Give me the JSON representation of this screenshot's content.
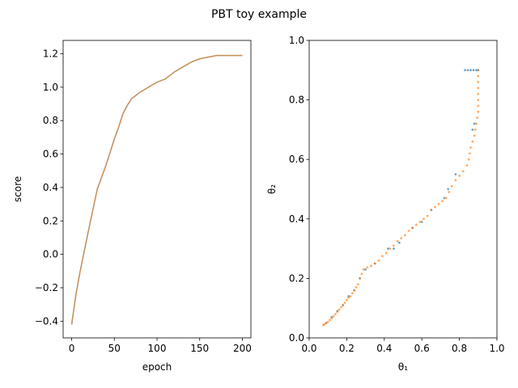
{
  "figure_title": "PBT toy example",
  "chart_data": [
    {
      "type": "line",
      "xlabel": "epoch",
      "ylabel": "score",
      "xlim": [
        -10,
        210
      ],
      "ylim": [
        -0.5,
        1.28
      ],
      "xticks": [
        0,
        50,
        100,
        150,
        200
      ],
      "yticks": [
        -0.4,
        -0.2,
        0.0,
        0.2,
        0.4,
        0.6,
        0.8,
        1.0,
        1.2
      ],
      "xtick_labels": [
        "0",
        "50",
        "100",
        "150",
        "200"
      ],
      "ytick_labels": [
        "−0.4",
        "−0.2",
        "0.0",
        "0.2",
        "0.4",
        "0.6",
        "0.8",
        "1.0",
        "1.2"
      ],
      "grid": false,
      "series": [
        {
          "color": "#1f77b4",
          "x": [
            0,
            5,
            10,
            20,
            30,
            40,
            50,
            55,
            60,
            65,
            70,
            80,
            90,
            100,
            110,
            120,
            130,
            140,
            150,
            160,
            170,
            180,
            190,
            200
          ],
          "y": [
            -0.42,
            -0.24,
            -0.1,
            0.15,
            0.39,
            0.53,
            0.69,
            0.76,
            0.84,
            0.89,
            0.93,
            0.97,
            1.0,
            1.03,
            1.05,
            1.09,
            1.12,
            1.15,
            1.17,
            1.18,
            1.19,
            1.19,
            1.19,
            1.19
          ]
        },
        {
          "color": "#ff7f0e",
          "x": [
            0,
            5,
            10,
            20,
            30,
            40,
            50,
            55,
            60,
            65,
            70,
            80,
            90,
            100,
            110,
            120,
            130,
            140,
            150,
            160,
            170,
            180,
            190,
            200
          ],
          "y": [
            -0.42,
            -0.24,
            -0.1,
            0.15,
            0.39,
            0.53,
            0.69,
            0.76,
            0.84,
            0.89,
            0.93,
            0.97,
            1.0,
            1.03,
            1.05,
            1.09,
            1.12,
            1.15,
            1.17,
            1.18,
            1.19,
            1.19,
            1.19,
            1.19
          ]
        }
      ]
    },
    {
      "type": "scatter",
      "xlabel": "θ₁",
      "ylabel": "θ₂",
      "xlim": [
        0.0,
        1.0
      ],
      "ylim": [
        0.0,
        1.0
      ],
      "xticks": [
        0.0,
        0.2,
        0.4,
        0.6,
        0.8,
        1.0
      ],
      "yticks": [
        0.0,
        0.2,
        0.4,
        0.6,
        0.8,
        1.0
      ],
      "xtick_labels": [
        "0.0",
        "0.2",
        "0.4",
        "0.6",
        "0.8",
        "1.0"
      ],
      "ytick_labels": [
        "0.0",
        "0.2",
        "0.4",
        "0.6",
        "0.8",
        "1.0"
      ],
      "grid": false,
      "series": [
        {
          "color": "#1f77b4",
          "points": [
            [
              0.9,
              0.9
            ],
            [
              0.89,
              0.9
            ],
            [
              0.875,
              0.9
            ],
            [
              0.86,
              0.9
            ],
            [
              0.845,
              0.9
            ],
            [
              0.83,
              0.9
            ],
            [
              0.88,
              0.72
            ],
            [
              0.87,
              0.7
            ],
            [
              0.78,
              0.55
            ],
            [
              0.74,
              0.5
            ],
            [
              0.72,
              0.47
            ],
            [
              0.65,
              0.43
            ],
            [
              0.6,
              0.39
            ],
            [
              0.55,
              0.37
            ],
            [
              0.48,
              0.32
            ],
            [
              0.45,
              0.3
            ],
            [
              0.42,
              0.3
            ],
            [
              0.35,
              0.25
            ],
            [
              0.3,
              0.23
            ],
            [
              0.27,
              0.2
            ],
            [
              0.24,
              0.16
            ],
            [
              0.21,
              0.14
            ],
            [
              0.18,
              0.11
            ],
            [
              0.15,
              0.09
            ],
            [
              0.12,
              0.07
            ],
            [
              0.09,
              0.05
            ]
          ]
        },
        {
          "color": "#ff7f0e",
          "points": [
            [
              0.9,
              0.9
            ],
            [
              0.9,
              0.88
            ],
            [
              0.9,
              0.86
            ],
            [
              0.9,
              0.84
            ],
            [
              0.9,
              0.82
            ],
            [
              0.9,
              0.8
            ],
            [
              0.9,
              0.78
            ],
            [
              0.9,
              0.76
            ],
            [
              0.895,
              0.74
            ],
            [
              0.89,
              0.72
            ],
            [
              0.885,
              0.7
            ],
            [
              0.88,
              0.68
            ],
            [
              0.87,
              0.66
            ],
            [
              0.86,
              0.64
            ],
            [
              0.855,
              0.62
            ],
            [
              0.85,
              0.6
            ],
            [
              0.84,
              0.58
            ],
            [
              0.82,
              0.56
            ],
            [
              0.8,
              0.545
            ],
            [
              0.78,
              0.53
            ],
            [
              0.76,
              0.51
            ],
            [
              0.745,
              0.49
            ],
            [
              0.73,
              0.47
            ],
            [
              0.71,
              0.46
            ],
            [
              0.69,
              0.45
            ],
            [
              0.67,
              0.44
            ],
            [
              0.65,
              0.43
            ],
            [
              0.63,
              0.41
            ],
            [
              0.61,
              0.4
            ],
            [
              0.59,
              0.39
            ],
            [
              0.57,
              0.38
            ],
            [
              0.55,
              0.37
            ],
            [
              0.53,
              0.36
            ],
            [
              0.51,
              0.345
            ],
            [
              0.49,
              0.335
            ],
            [
              0.47,
              0.325
            ],
            [
              0.45,
              0.31
            ],
            [
              0.43,
              0.3
            ],
            [
              0.41,
              0.285
            ],
            [
              0.39,
              0.275
            ],
            [
              0.37,
              0.26
            ],
            [
              0.35,
              0.25
            ],
            [
              0.33,
              0.242
            ],
            [
              0.31,
              0.237
            ],
            [
              0.29,
              0.23
            ],
            [
              0.28,
              0.215
            ],
            [
              0.27,
              0.2
            ],
            [
              0.26,
              0.18
            ],
            [
              0.25,
              0.17
            ],
            [
              0.24,
              0.16
            ],
            [
              0.23,
              0.15
            ],
            [
              0.22,
              0.14
            ],
            [
              0.21,
              0.135
            ],
            [
              0.2,
              0.127
            ],
            [
              0.19,
              0.118
            ],
            [
              0.18,
              0.11
            ],
            [
              0.17,
              0.103
            ],
            [
              0.16,
              0.095
            ],
            [
              0.15,
              0.088
            ],
            [
              0.14,
              0.08
            ],
            [
              0.13,
              0.073
            ],
            [
              0.12,
              0.066
            ],
            [
              0.11,
              0.06
            ],
            [
              0.1,
              0.054
            ],
            [
              0.09,
              0.05
            ],
            [
              0.08,
              0.045
            ],
            [
              0.075,
              0.043
            ]
          ]
        }
      ]
    }
  ]
}
